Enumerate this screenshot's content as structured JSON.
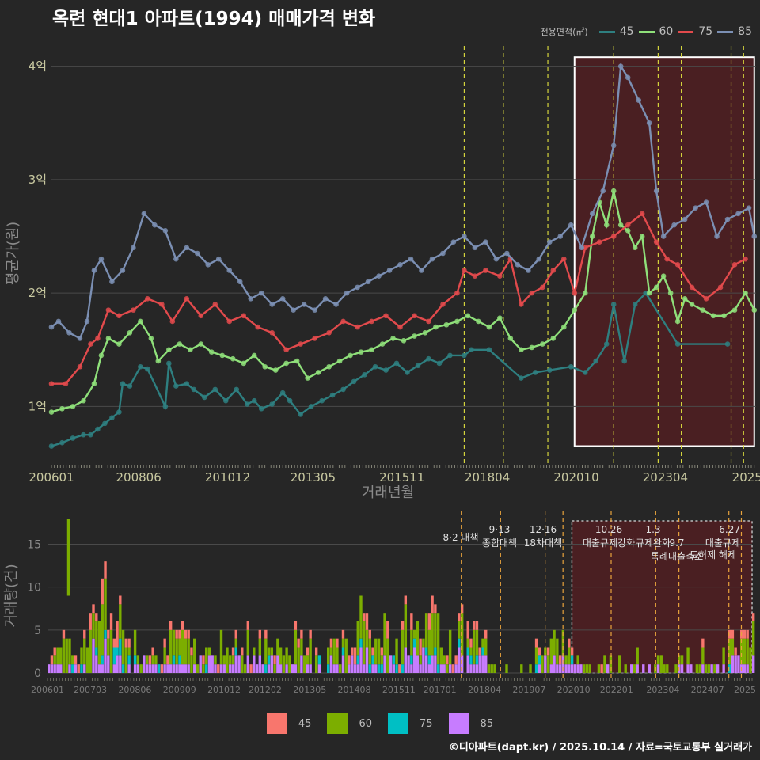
{
  "header": {
    "title": "옥련 현대1 아파트(1994) 매매가격 변화",
    "legend_title": "전용면적(㎡)"
  },
  "colors": {
    "background": "#262626",
    "gridline": "#4a4a4a",
    "axis_text": "#c8c8a0",
    "axis_title": "#8a8a8a",
    "highlight_fill": "#4a1f22",
    "series_45": "#2e7f80",
    "series_60": "#8fe07a",
    "series_75": "#e24a4c",
    "series_85": "#7b8fb3",
    "vol_45": "#f8766d",
    "vol_60": "#7cae00",
    "vol_75": "#00bfc4",
    "vol_85": "#c77cff",
    "policy_line": "#d4d43c"
  },
  "chart_data": [
    {
      "type": "line",
      "title": "옥련 현대1 아파트(1994) 매매가격 변화",
      "xlabel": "거래년월",
      "ylabel": "평균가(원)",
      "x_tick_labels": [
        "200601",
        "200806",
        "201012",
        "201305",
        "201511",
        "201804",
        "202010",
        "202304",
        "2025"
      ],
      "y_tick_labels": [
        "1억",
        "2억",
        "3억",
        "4억"
      ],
      "y_ticks_value": [
        1,
        2,
        3,
        4
      ],
      "ylim": [
        0.5,
        4.2
      ],
      "xlim": [
        2006.0,
        2025.8
      ],
      "grid": true,
      "legend": "top-right",
      "highlight_range": [
        2020.7,
        2025.75
      ],
      "highlight_ylim": [
        0.65,
        4.08
      ],
      "policy_dates": [
        2017.6,
        2018.7,
        2019.95,
        2021.8,
        2023.05,
        2023.7,
        2025.1,
        2025.45
      ],
      "series": [
        {
          "name": "45",
          "x": [
            2006.0,
            2006.3,
            2006.6,
            2006.9,
            2007.1,
            2007.3,
            2007.5,
            2007.7,
            2007.9,
            2008.0,
            2008.2,
            2008.5,
            2008.7,
            2009.2,
            2009.3,
            2009.5,
            2009.8,
            2010.0,
            2010.3,
            2010.6,
            2010.9,
            2011.2,
            2011.5,
            2011.7,
            2011.9,
            2012.2,
            2012.5,
            2012.7,
            2013.0,
            2013.3,
            2013.6,
            2013.9,
            2014.2,
            2014.5,
            2014.8,
            2015.1,
            2015.4,
            2015.7,
            2016.0,
            2016.3,
            2016.6,
            2016.9,
            2017.2,
            2017.6,
            2017.8,
            2018.3,
            2019.2,
            2019.6,
            2020.0,
            2020.6,
            2021.0,
            2021.3,
            2021.6,
            2021.8,
            2022.1,
            2022.4,
            2022.7,
            2023.6,
            2025.0
          ],
          "y": [
            0.65,
            0.68,
            0.72,
            0.75,
            0.75,
            0.8,
            0.85,
            0.9,
            0.95,
            1.2,
            1.18,
            1.35,
            1.33,
            1.0,
            1.38,
            1.18,
            1.2,
            1.15,
            1.08,
            1.15,
            1.05,
            1.15,
            1.02,
            1.05,
            0.98,
            1.02,
            1.12,
            1.05,
            0.93,
            1.0,
            1.05,
            1.1,
            1.15,
            1.22,
            1.28,
            1.35,
            1.32,
            1.38,
            1.3,
            1.36,
            1.42,
            1.38,
            1.45,
            1.45,
            1.5,
            1.5,
            1.25,
            1.3,
            1.32,
            1.35,
            1.3,
            1.4,
            1.55,
            1.9,
            1.4,
            1.9,
            2.0,
            1.55,
            1.55
          ]
        },
        {
          "name": "60",
          "x": [
            2006.0,
            2006.3,
            2006.6,
            2006.9,
            2007.2,
            2007.4,
            2007.6,
            2007.9,
            2008.2,
            2008.5,
            2008.8,
            2009.0,
            2009.3,
            2009.6,
            2009.9,
            2010.2,
            2010.5,
            2010.8,
            2011.1,
            2011.4,
            2011.7,
            2012.0,
            2012.3,
            2012.6,
            2012.9,
            2013.2,
            2013.5,
            2013.8,
            2014.1,
            2014.4,
            2014.7,
            2015.0,
            2015.3,
            2015.6,
            2015.9,
            2016.2,
            2016.5,
            2016.8,
            2017.1,
            2017.4,
            2017.7,
            2018.0,
            2018.3,
            2018.6,
            2018.9,
            2019.2,
            2019.5,
            2019.8,
            2020.1,
            2020.4,
            2020.7,
            2021.0,
            2021.2,
            2021.4,
            2021.6,
            2021.8,
            2022.0,
            2022.2,
            2022.4,
            2022.6,
            2022.8,
            2023.0,
            2023.2,
            2023.4,
            2023.6,
            2023.8,
            2024.0,
            2024.3,
            2024.6,
            2024.9,
            2025.2,
            2025.5,
            2025.75
          ],
          "y": [
            0.95,
            0.98,
            1.0,
            1.05,
            1.2,
            1.45,
            1.6,
            1.55,
            1.65,
            1.75,
            1.6,
            1.4,
            1.5,
            1.55,
            1.5,
            1.55,
            1.48,
            1.45,
            1.42,
            1.38,
            1.45,
            1.35,
            1.32,
            1.38,
            1.4,
            1.25,
            1.3,
            1.35,
            1.4,
            1.45,
            1.48,
            1.5,
            1.55,
            1.6,
            1.58,
            1.62,
            1.65,
            1.7,
            1.72,
            1.75,
            1.8,
            1.75,
            1.7,
            1.78,
            1.6,
            1.5,
            1.52,
            1.55,
            1.6,
            1.7,
            1.85,
            2.0,
            2.5,
            2.8,
            2.6,
            2.9,
            2.6,
            2.55,
            2.4,
            2.5,
            2.0,
            2.05,
            2.15,
            2.0,
            1.75,
            1.95,
            1.9,
            1.85,
            1.8,
            1.8,
            1.85,
            2.0,
            1.85
          ]
        },
        {
          "name": "75",
          "x": [
            2006.0,
            2006.4,
            2006.8,
            2007.1,
            2007.3,
            2007.6,
            2007.9,
            2008.3,
            2008.7,
            2009.1,
            2009.4,
            2009.8,
            2010.2,
            2010.6,
            2011.0,
            2011.4,
            2011.8,
            2012.2,
            2012.6,
            2013.0,
            2013.4,
            2013.8,
            2014.2,
            2014.6,
            2015.0,
            2015.4,
            2015.8,
            2016.2,
            2016.6,
            2017.0,
            2017.4,
            2017.6,
            2017.9,
            2018.2,
            2018.6,
            2018.9,
            2019.2,
            2019.5,
            2019.8,
            2020.1,
            2020.4,
            2020.7,
            2021.0,
            2021.4,
            2021.8,
            2022.2,
            2022.6,
            2023.0,
            2023.3,
            2023.6,
            2024.0,
            2024.4,
            2024.8,
            2025.2,
            2025.5
          ],
          "y": [
            1.2,
            1.2,
            1.35,
            1.55,
            1.6,
            1.85,
            1.8,
            1.85,
            1.95,
            1.9,
            1.75,
            1.95,
            1.8,
            1.9,
            1.75,
            1.8,
            1.7,
            1.65,
            1.5,
            1.55,
            1.6,
            1.65,
            1.75,
            1.7,
            1.75,
            1.8,
            1.7,
            1.8,
            1.75,
            1.9,
            2.0,
            2.2,
            2.15,
            2.2,
            2.15,
            2.3,
            1.9,
            2.0,
            2.05,
            2.2,
            2.3,
            2.0,
            2.4,
            2.45,
            2.5,
            2.6,
            2.7,
            2.45,
            2.3,
            2.25,
            2.05,
            1.95,
            2.05,
            2.25,
            2.3
          ]
        },
        {
          "name": "85",
          "x": [
            2006.0,
            2006.2,
            2006.5,
            2006.8,
            2007.0,
            2007.2,
            2007.4,
            2007.7,
            2008.0,
            2008.3,
            2008.6,
            2008.9,
            2009.2,
            2009.5,
            2009.8,
            2010.1,
            2010.4,
            2010.7,
            2011.0,
            2011.3,
            2011.6,
            2011.9,
            2012.2,
            2012.5,
            2012.8,
            2013.1,
            2013.4,
            2013.7,
            2014.0,
            2014.3,
            2014.6,
            2014.9,
            2015.2,
            2015.5,
            2015.8,
            2016.1,
            2016.4,
            2016.7,
            2017.0,
            2017.3,
            2017.6,
            2017.9,
            2018.2,
            2018.5,
            2018.8,
            2019.1,
            2019.4,
            2019.7,
            2020.0,
            2020.3,
            2020.6,
            2020.9,
            2021.2,
            2021.5,
            2021.8,
            2022.0,
            2022.2,
            2022.5,
            2022.8,
            2023.0,
            2023.2,
            2023.5,
            2023.8,
            2024.1,
            2024.4,
            2024.7,
            2025.0,
            2025.3,
            2025.6,
            2025.75
          ],
          "y": [
            1.7,
            1.75,
            1.65,
            1.6,
            1.75,
            2.2,
            2.3,
            2.1,
            2.2,
            2.4,
            2.7,
            2.6,
            2.55,
            2.3,
            2.4,
            2.35,
            2.25,
            2.3,
            2.2,
            2.1,
            1.95,
            2.0,
            1.9,
            1.95,
            1.85,
            1.9,
            1.85,
            1.95,
            1.9,
            2.0,
            2.05,
            2.1,
            2.15,
            2.2,
            2.25,
            2.3,
            2.2,
            2.3,
            2.35,
            2.45,
            2.5,
            2.4,
            2.45,
            2.3,
            2.35,
            2.25,
            2.2,
            2.3,
            2.45,
            2.5,
            2.6,
            2.4,
            2.7,
            2.9,
            3.3,
            4.0,
            3.9,
            3.7,
            3.5,
            2.9,
            2.5,
            2.6,
            2.65,
            2.75,
            2.8,
            2.5,
            2.65,
            2.7,
            2.75,
            2.5
          ]
        }
      ]
    },
    {
      "type": "bar",
      "xlabel": "",
      "ylabel": "거래량(건)",
      "x_tick_labels": [
        "200601",
        "200703",
        "200806",
        "200909",
        "201012",
        "201202",
        "201305",
        "201408",
        "201511",
        "201701",
        "201804",
        "201907",
        "202010",
        "202201",
        "202304",
        "202407",
        "2025"
      ],
      "y_tick_labels": [
        "0",
        "5",
        "10",
        "15"
      ],
      "ylim": [
        0,
        18
      ],
      "grid": true,
      "annotations": [
        {
          "date": "2017.08.02",
          "lines": [
            "8·2 대책"
          ]
        },
        {
          "date": "2018.09.13",
          "lines": [
            "9·13",
            "종합대책"
          ]
        },
        {
          "date": "2019.12.16",
          "lines": [
            "12·16",
            "18차대책"
          ]
        },
        {
          "date": "2021.10.26",
          "lines": [
            "10.26",
            "대출규제강화"
          ]
        },
        {
          "date": "2023.01.03",
          "lines": [
            "1.3",
            "규제완화"
          ]
        },
        {
          "date": "2023.09.07",
          "lines": [
            "9.7",
            "특례대출축소"
          ]
        },
        {
          "date": "2025.03.19",
          "lines": [
            "토허제 해제"
          ]
        },
        {
          "date": "2025.06.27",
          "lines": [
            "6.27",
            "대출규제"
          ]
        }
      ],
      "series": [
        {
          "name": "45",
          "monthly_avg": 0.6
        },
        {
          "name": "60",
          "monthly_avg": 1.4
        },
        {
          "name": "75",
          "monthly_avg": 0.4
        },
        {
          "name": "85",
          "monthly_avg": 0.8
        }
      ],
      "peak_value": 18
    }
  ],
  "legend_bottom": {
    "items": [
      "45",
      "60",
      "75",
      "85"
    ]
  },
  "footer": {
    "credit": "©디아파트(dapt.kr) / 2025.10.14 / 자료=국토교통부 실거래가"
  }
}
